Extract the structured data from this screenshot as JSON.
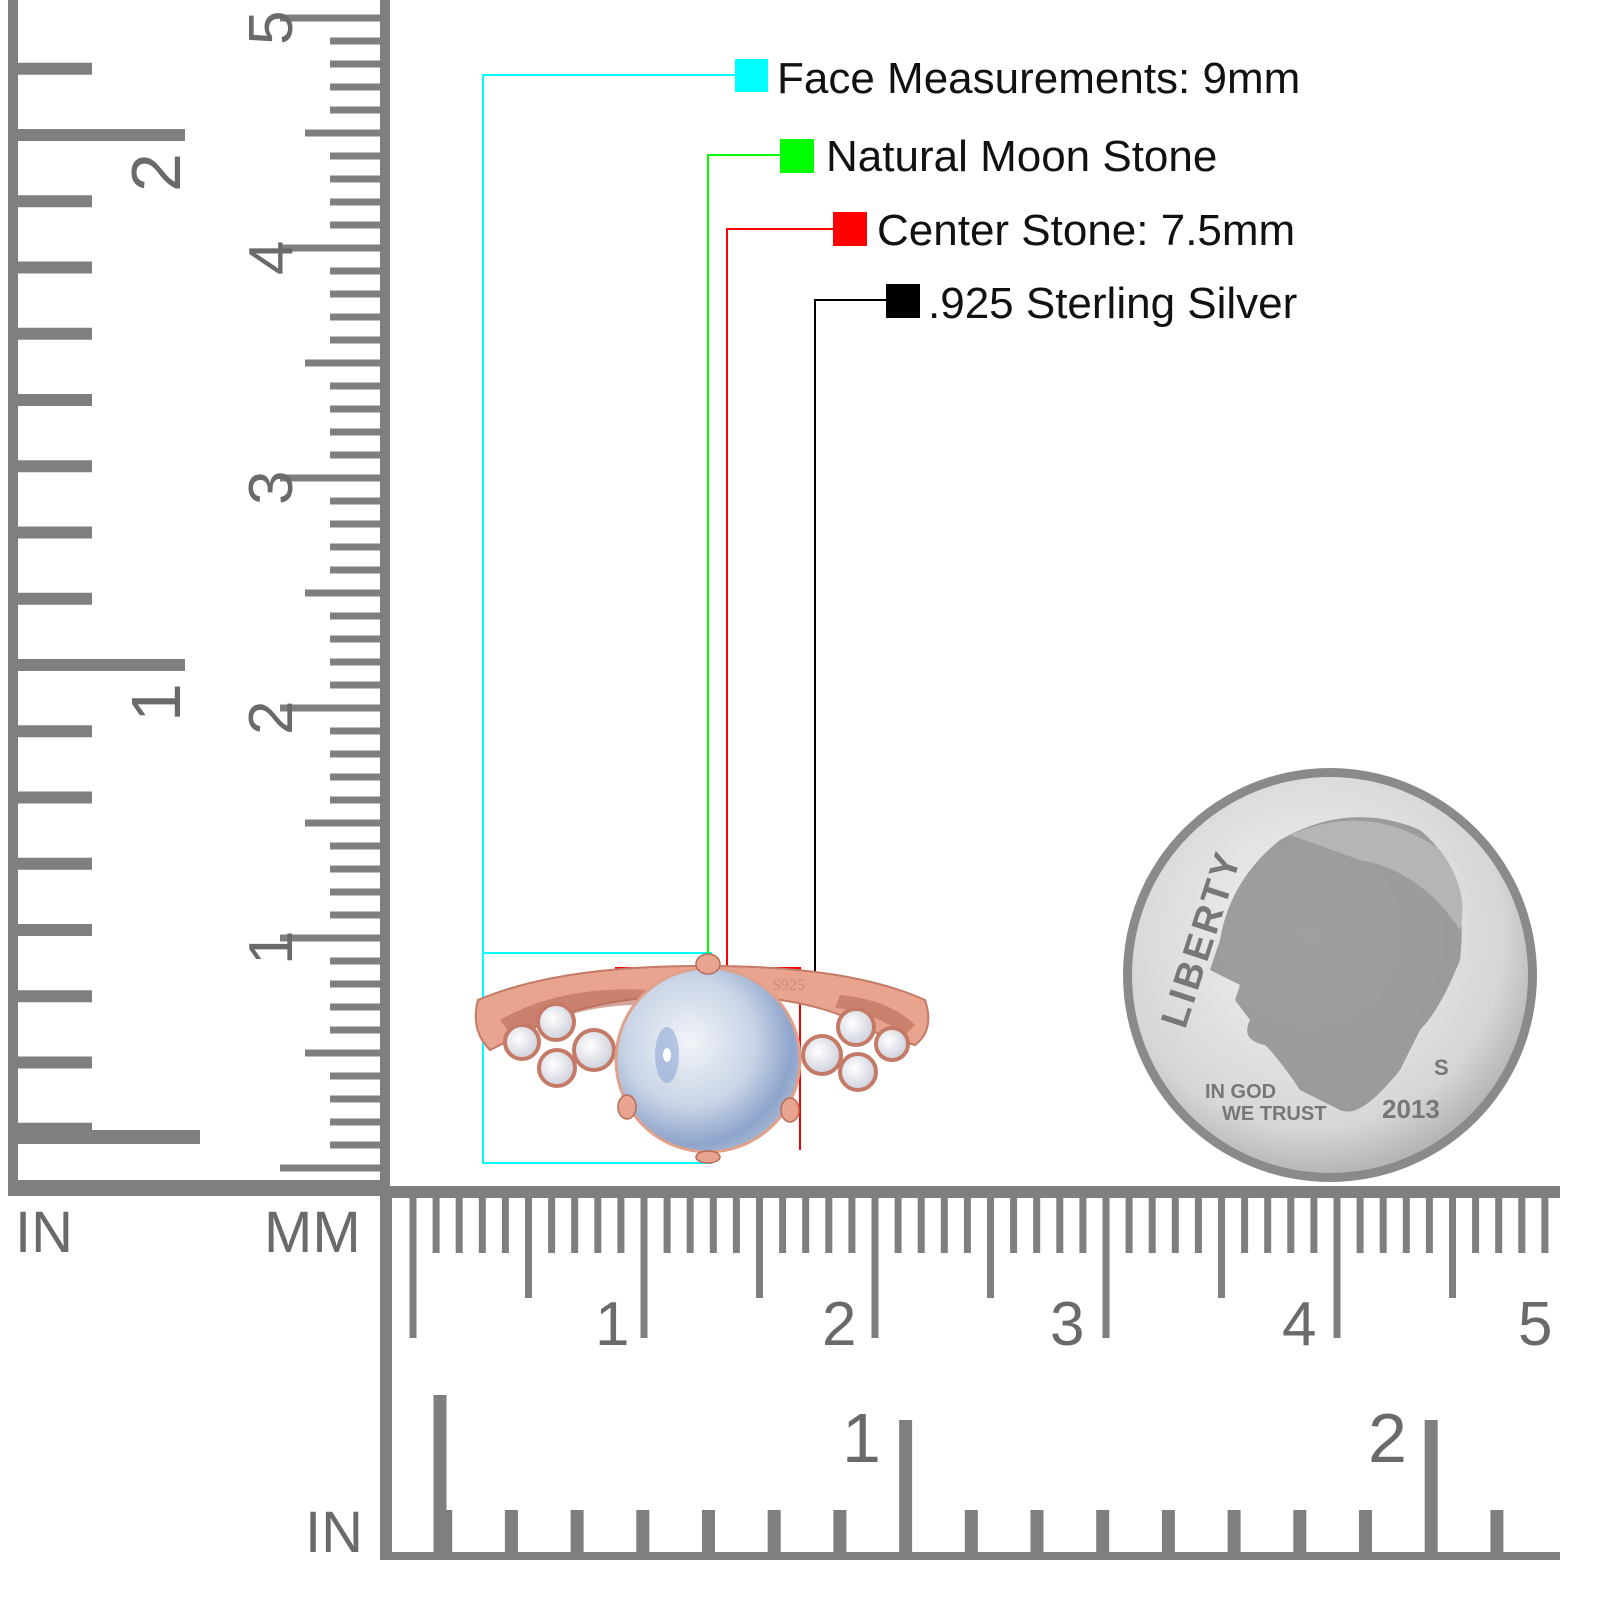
{
  "callouts": [
    {
      "label": "Face Measurements: 9mm",
      "color": "#00ffff"
    },
    {
      "label": "Natural Moon Stone",
      "color": "#00ff00"
    },
    {
      "label": "Center Stone: 7.5mm",
      "color": "#ff0000"
    },
    {
      "label": ".925 Sterling Silver",
      "color": "#000000"
    }
  ],
  "ruler": {
    "vertical_inch_unit": "IN",
    "vertical_mm_unit": "MM",
    "horizontal_inch_unit": "IN",
    "vertical_inch_labels": [
      "1",
      "2"
    ],
    "vertical_cm_labels": [
      "1",
      "2",
      "3",
      "4",
      "5"
    ],
    "horizontal_cm_labels": [
      "1",
      "2",
      "3",
      "4",
      "5"
    ],
    "horizontal_inch_labels": [
      "1",
      "2"
    ],
    "color": "#7f7f7f"
  },
  "ring": {
    "stamp": "S925",
    "metal_color": "#e8a48e"
  },
  "coin": {
    "motto_top": "LIBERTY",
    "motto_bottom_1": "IN GOD",
    "motto_bottom_2": "WE TRUST",
    "year": "2013",
    "mint_mark": "S"
  }
}
